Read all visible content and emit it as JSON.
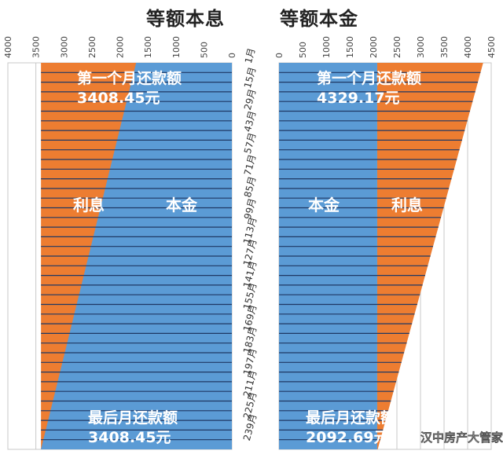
{
  "chart_data": [
    {
      "type": "bar",
      "orientation": "horizontal",
      "stacked": true,
      "title": "等额本息",
      "x_axis_direction": "reversed",
      "xlim": [
        0,
        4000
      ],
      "xticks": [
        "0",
        "500",
        "1000",
        "1500",
        "2000",
        "2500",
        "3000",
        "3500",
        "4000"
      ],
      "categories": [
        "1月",
        "15月",
        "29月",
        "43月",
        "57月",
        "71月",
        "85月",
        "99月",
        "113月",
        "127月",
        "141月",
        "155月",
        "169月",
        "183月",
        "197月",
        "211月",
        "225月",
        "239月"
      ],
      "series": [
        {
          "name": "本金",
          "start": 1710,
          "end": 3408.45
        },
        {
          "name": "利息",
          "start": 1698.45,
          "end": 0
        }
      ],
      "annotations": [
        {
          "text": "第一个月还款额",
          "value": "3408.45元"
        },
        {
          "text": "最后月还款额",
          "value": "3408.45元"
        }
      ],
      "labels": [
        "利息",
        "本金"
      ]
    },
    {
      "type": "bar",
      "orientation": "horizontal",
      "stacked": true,
      "title": "等额本金",
      "xlim": [
        0,
        4500
      ],
      "xticks": [
        "0",
        "500",
        "1000",
        "1500",
        "2000",
        "2500",
        "3000",
        "3500",
        "4000",
        "4500"
      ],
      "categories": [
        "1月",
        "15月",
        "29月",
        "43月",
        "57月",
        "71月",
        "85月",
        "99月",
        "113月",
        "127月",
        "141月",
        "155月",
        "169月",
        "183月",
        "197月",
        "211月",
        "225月",
        "239月"
      ],
      "series": [
        {
          "name": "本金",
          "start": 2083,
          "end": 2083
        },
        {
          "name": "利息",
          "start": 2246.17,
          "end": 9.69
        }
      ],
      "annotations": [
        {
          "text": "第一个月还款额",
          "value": "4329.17元"
        },
        {
          "text": "最后月还款额",
          "value": "2092.69元"
        }
      ],
      "labels": [
        "本金",
        "利息"
      ]
    }
  ],
  "colors": {
    "principal": "#5b9bd5",
    "interest": "#ed7d31",
    "rows": "#1f3864",
    "grid": "#c8c8c8"
  },
  "watermark": {
    "icon": "wechat-icon",
    "text": "汉中房产大管家"
  }
}
